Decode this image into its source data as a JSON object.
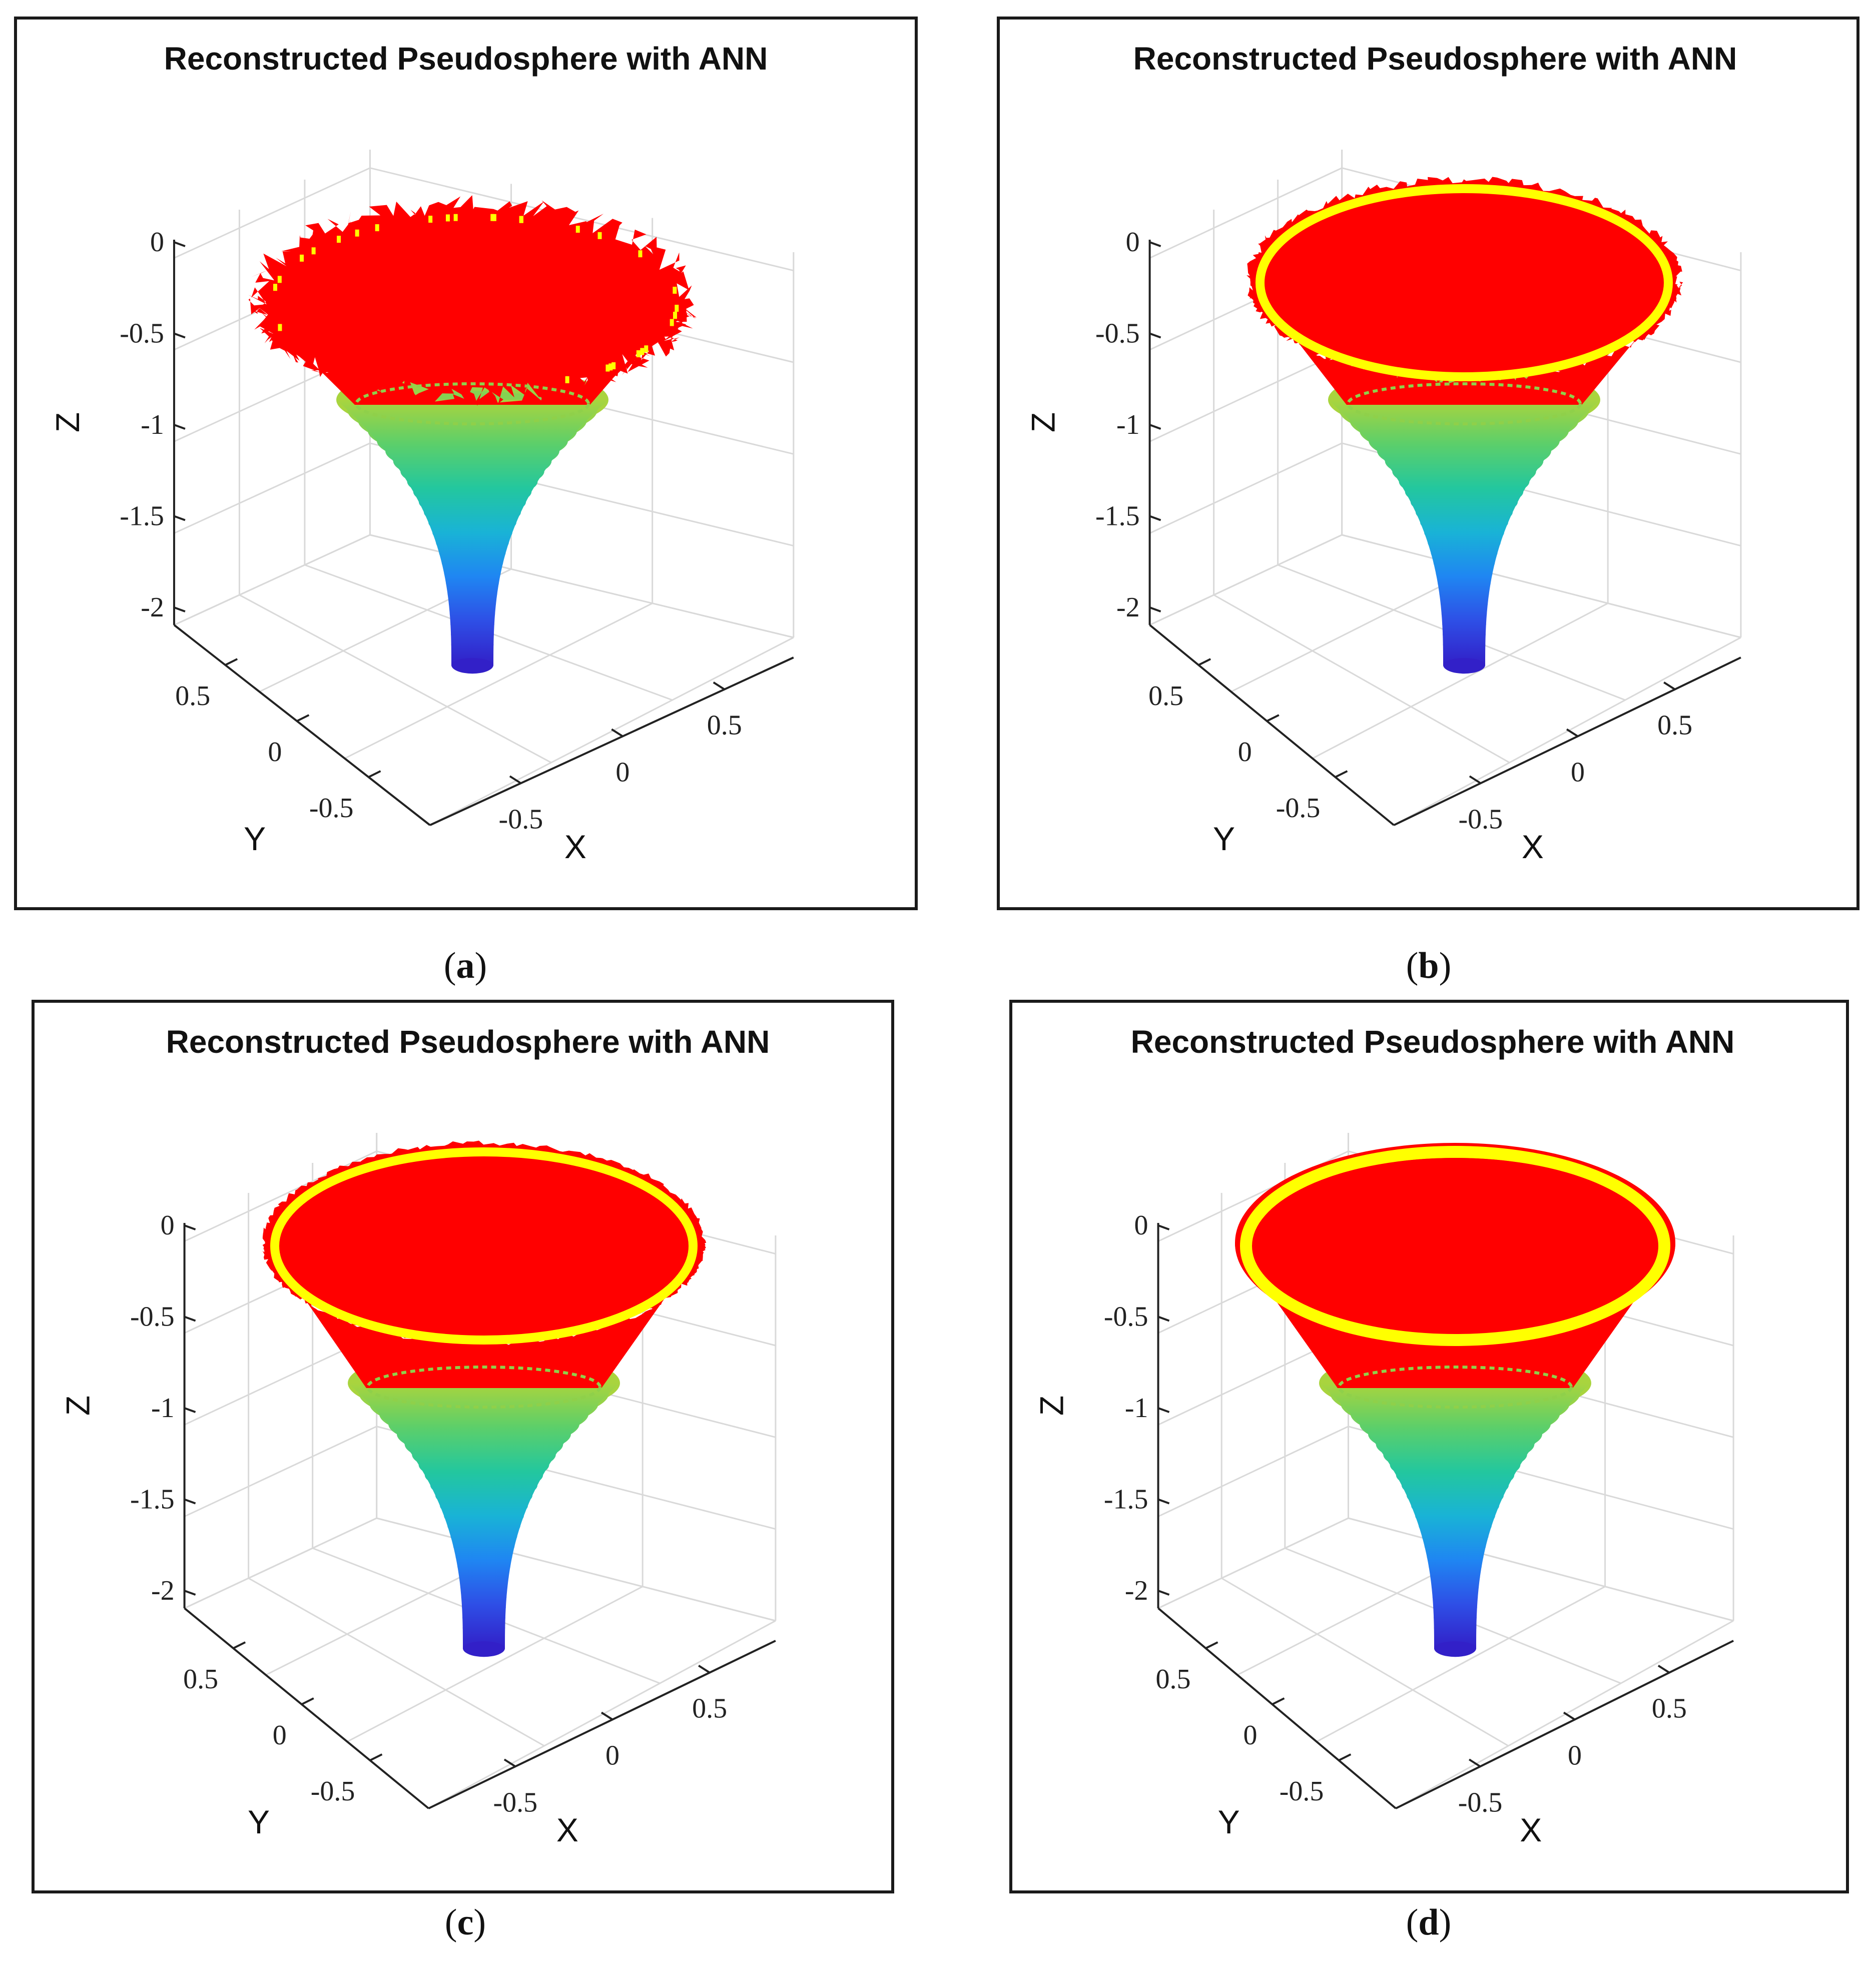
{
  "figure": {
    "panels": [
      {
        "id": "a",
        "caption_open": "(",
        "caption_letter": "a",
        "caption_close": ")"
      },
      {
        "id": "b",
        "caption_open": "(",
        "caption_letter": "b",
        "caption_close": ")"
      },
      {
        "id": "c",
        "caption_open": "(",
        "caption_letter": "c",
        "caption_close": ")"
      },
      {
        "id": "d",
        "caption_open": "(",
        "caption_letter": "d",
        "caption_close": ")"
      }
    ]
  },
  "chart_data": [
    {
      "type": "surface3d",
      "panel": "a",
      "title": "Reconstructed Pseudosphere with ANN",
      "xlabel": "X",
      "ylabel": "Y",
      "zlabel": "Z",
      "xticks": [
        "-0.5",
        "0",
        "0.5"
      ],
      "yticks": [
        "0.5",
        "0",
        "-0.5"
      ],
      "zticks": [
        "0",
        "-0.5",
        "-1",
        "-1.5",
        "-2"
      ],
      "xlim": [
        -1,
        1
      ],
      "ylim": [
        -1,
        1
      ],
      "zlim": [
        -2.2,
        0.1
      ],
      "z_neck": -2.1,
      "z_rim": 0,
      "rim_noise": "high",
      "colors": {
        "top": "#ff0000",
        "ring": "#ffff00",
        "neck": "#3220c8"
      }
    },
    {
      "type": "surface3d",
      "panel": "b",
      "title": "Reconstructed Pseudosphere with ANN",
      "xlabel": "X",
      "ylabel": "Y",
      "zlabel": "Z",
      "xticks": [
        "-0.5",
        "0",
        "0.5"
      ],
      "yticks": [
        "0.5",
        "0",
        "-0.5"
      ],
      "zticks": [
        "0",
        "-0.5",
        "-1",
        "-1.5",
        "-2"
      ],
      "xlim": [
        -1,
        1
      ],
      "ylim": [
        -1,
        1
      ],
      "zlim": [
        -2.2,
        0.1
      ],
      "z_neck": -2.1,
      "z_rim": 0,
      "rim_noise": "medium",
      "colors": {
        "top": "#ff0000",
        "ring": "#ffff00",
        "neck": "#3220c8"
      }
    },
    {
      "type": "surface3d",
      "panel": "c",
      "title": "Reconstructed Pseudosphere with ANN",
      "xlabel": "X",
      "ylabel": "Y",
      "zlabel": "Z",
      "xticks": [
        "-0.5",
        "0",
        "0.5"
      ],
      "yticks": [
        "0.5",
        "0",
        "-0.5"
      ],
      "zticks": [
        "0",
        "-0.5",
        "-1",
        "-1.5",
        "-2"
      ],
      "xlim": [
        -1,
        1
      ],
      "ylim": [
        -1,
        1
      ],
      "zlim": [
        -2.2,
        0.1
      ],
      "z_neck": -2.1,
      "z_rim": 0,
      "rim_noise": "low",
      "colors": {
        "top": "#ff0000",
        "ring": "#ffff00",
        "neck": "#3220c8"
      }
    },
    {
      "type": "surface3d",
      "panel": "d",
      "title": "Reconstructed Pseudosphere with ANN",
      "xlabel": "X",
      "ylabel": "Y",
      "zlabel": "Z",
      "xticks": [
        "-0.5",
        "0",
        "0.5"
      ],
      "yticks": [
        "0.5",
        "0",
        "-0.5"
      ],
      "zticks": [
        "0",
        "-0.5",
        "-1",
        "-1.5",
        "-2"
      ],
      "xlim": [
        -1,
        1
      ],
      "ylim": [
        -1,
        1
      ],
      "zlim": [
        -2.2,
        0.1
      ],
      "z_neck": -2.1,
      "z_rim": 0,
      "rim_noise": "none",
      "colors": {
        "top": "#ff0000",
        "ring": "#ffff00",
        "neck": "#3220c8"
      }
    }
  ]
}
